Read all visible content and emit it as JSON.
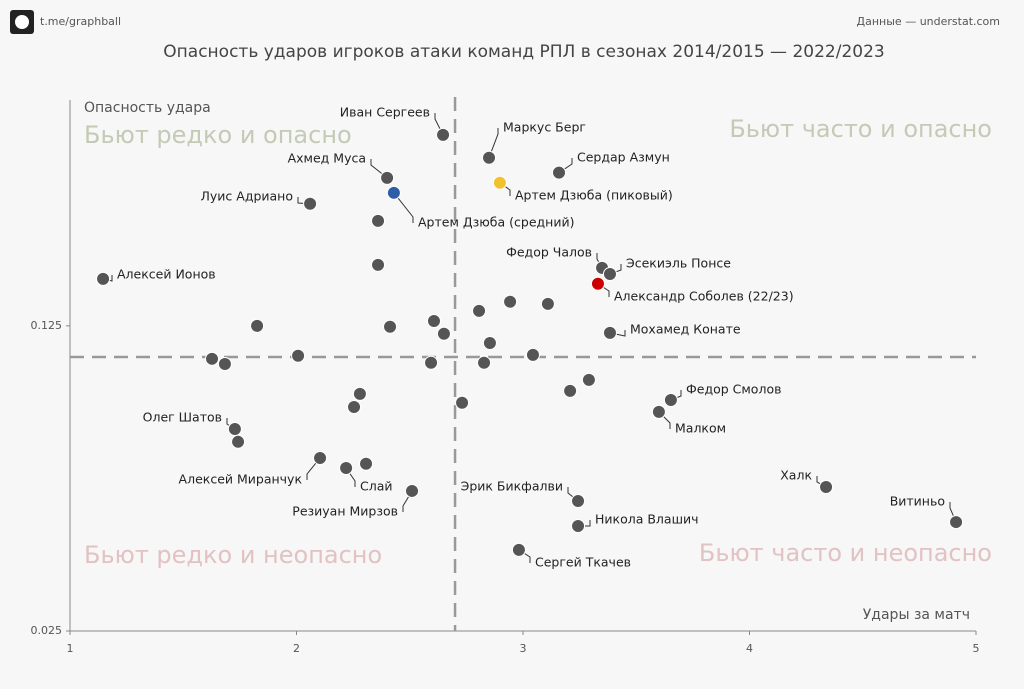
{
  "header": {
    "source_left": "t.me/graphball",
    "source_right": "Данные — understat.com"
  },
  "chart_data": {
    "type": "scatter",
    "title": "Опасность ударов игроков атаки команд РПЛ в сезонах 2014/2015 — 2022/2023",
    "x_label": "Удары за матч",
    "y_label": "Опасность удара",
    "quadrants": {
      "top_left": "Бьют редко и опасно",
      "top_right": "Бьют часто и опасно",
      "bottom_left": "Бьют редко и неопасно",
      "bottom_right": "Бьют часто и неопасно"
    },
    "xlim": [
      1,
      5
    ],
    "ylim": [
      0.025,
      0.2
    ],
    "xticks": [
      1,
      2,
      3,
      4,
      5
    ],
    "yticks": [
      0.025,
      0.125
    ],
    "mean_x": 2.7,
    "mean_y": 0.1148,
    "color": "#555555",
    "x": [
      2.647,
      2.85,
      3.159,
      2.898,
      2.4,
      2.43,
      2.06,
      2.36,
      2.36,
      1.146,
      3.349,
      3.384,
      3.331,
      2.943,
      3.11,
      2.806,
      2.607,
      2.651,
      2.413,
      1.826,
      3.384,
      2.854,
      3.044,
      2.007,
      1.627,
      1.684,
      2.594,
      2.828,
      3.291,
      3.208,
      3.653,
      2.28,
      2.254,
      2.731,
      3.6,
      1.728,
      1.742,
      2.104,
      2.307,
      2.219,
      2.51,
      4.338,
      3.243,
      4.912,
      3.243,
      2.982
    ],
    "values": [
      0.1876,
      0.1801,
      0.1752,
      0.1719,
      0.1735,
      0.1686,
      0.165,
      0.1594,
      0.145,
      0.1404,
      0.144,
      0.142,
      0.1388,
      0.1329,
      0.1322,
      0.1299,
      0.1266,
      0.1224,
      0.1247,
      0.125,
      0.1227,
      0.1194,
      0.1155,
      0.1152,
      0.1142,
      0.1125,
      0.1129,
      0.1129,
      0.1073,
      0.1037,
      0.1007,
      0.1027,
      0.0984,
      0.0998,
      0.0968,
      0.0912,
      0.087,
      0.0817,
      0.0798,
      0.0784,
      0.0709,
      0.0722,
      0.0676,
      0.0607,
      0.0594,
      0.0516
    ],
    "point_colors": [
      null,
      null,
      null,
      "#f2c12e",
      null,
      "#2f5da8",
      null,
      null,
      null,
      null,
      null,
      null,
      "#cc0000",
      null,
      null,
      null,
      null,
      null,
      null,
      null,
      null,
      null,
      null,
      null,
      null,
      null,
      null,
      null,
      null,
      null,
      null,
      null,
      null,
      null,
      null,
      null,
      null,
      null,
      null,
      null,
      null,
      null,
      null,
      null,
      null,
      null
    ],
    "labels": [
      "Иван Сергеев",
      "Маркус Берг",
      "Сердар Азмун",
      "Артем Дзюба (пиковый)",
      "Ахмед Муса",
      "Артем Дзюба (средний)",
      "Луис Адриано",
      null,
      null,
      "Алексей Ионов",
      "Федор Чалов",
      "Эсекиэль Понсе",
      "Александр Соболев (22/23)",
      null,
      null,
      null,
      null,
      null,
      null,
      null,
      "Мохамед Конате",
      null,
      null,
      null,
      null,
      null,
      null,
      null,
      null,
      null,
      "Федор Смолов",
      null,
      null,
      null,
      "Малком",
      "Олег Шатов",
      null,
      "Алексей Миранчук",
      null,
      "Слай",
      "Резиуан Мирзов",
      "Халк",
      "Эрик Бикфалви",
      "Витиньо",
      "Никола Влашич",
      "Сергей Ткачев"
    ]
  }
}
